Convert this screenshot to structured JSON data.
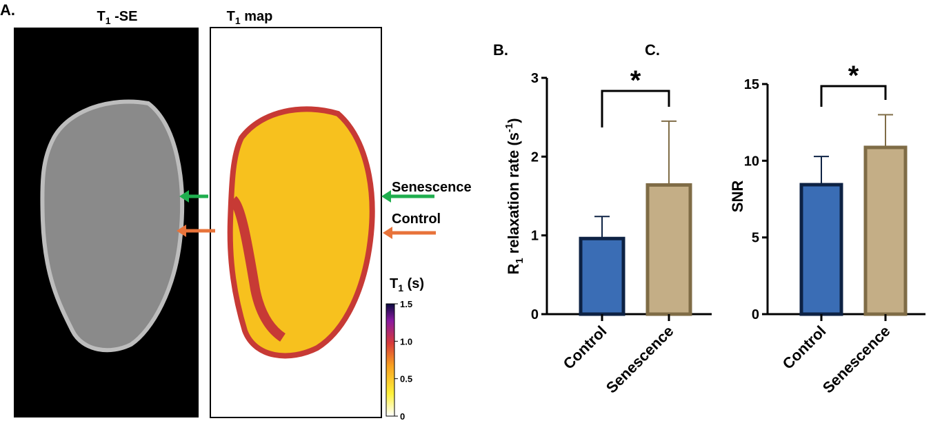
{
  "panel_a": {
    "label": "A.",
    "left_title": [
      "T",
      "1",
      " -SE"
    ],
    "right_title": [
      "T",
      "1",
      " map"
    ],
    "arrow_labels": [
      "Senescence",
      "Control"
    ],
    "colorbar": {
      "title": [
        "T",
        "1",
        " (s)"
      ],
      "ticks": [
        0,
        0.5,
        {
          "value": 1,
          "label": "1.0"
        },
        1.5
      ],
      "lim": [
        0,
        1.5
      ]
    }
  },
  "chart_data": [
    {
      "type": "bar",
      "panel_label": "B.",
      "y_label": [
        "R",
        "1",
        " relaxation rate (s",
        "-1",
        ")"
      ],
      "categories": [
        "Control",
        "Senescence"
      ],
      "values": [
        0.96,
        1.64
      ],
      "errors": [
        0.28,
        0.81
      ],
      "colors": [
        "#3a6db5",
        "#c4ae86"
      ],
      "edge_colors": [
        "#0d2244",
        "#7f6c46"
      ],
      "ylim": [
        0,
        3
      ],
      "yticks": [
        0,
        1,
        2,
        3
      ],
      "annotation": "*"
    },
    {
      "type": "bar",
      "panel_label": "C.",
      "y_label": [
        "SNR"
      ],
      "categories": [
        "Control",
        "Senescence"
      ],
      "values": [
        8.44,
        10.87
      ],
      "errors": [
        1.84,
        2.13
      ],
      "colors": [
        "#3a6db5",
        "#c4ae86"
      ],
      "edge_colors": [
        "#0d2244",
        "#7f6c46"
      ],
      "ylim": [
        0,
        15
      ],
      "yticks": [
        0,
        5,
        10,
        15
      ],
      "annotation": "*"
    }
  ]
}
